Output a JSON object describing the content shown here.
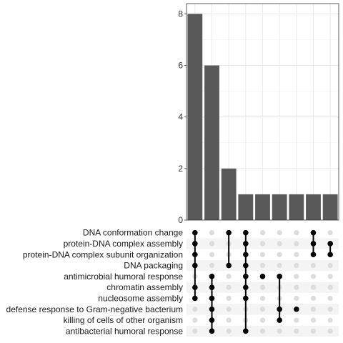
{
  "chart_data": {
    "type": "upset",
    "title": "",
    "ylim": [
      0,
      8.4
    ],
    "y_ticks": [
      0,
      2,
      4,
      6,
      8
    ],
    "y_tick_labels": [
      "0",
      "2",
      "4",
      "6",
      "8"
    ],
    "grid": true,
    "bar_color": "#595959",
    "dot_on_color": "#000000",
    "dot_off_color": "#dcdcdc",
    "sets": [
      "DNA conformation change",
      "protein-DNA complex assembly",
      "protein-DNA complex subunit organization",
      "DNA packaging",
      "antimicrobial humoral response",
      "chromatin assembly",
      "nucleosome assembly",
      "defense response to Gram-negative bacterium",
      "killing of cells of other organism",
      "antibacterial humoral response"
    ],
    "intersections": [
      {
        "value": 8,
        "members": [
          0,
          1,
          2,
          3,
          5,
          6
        ]
      },
      {
        "value": 6,
        "members": [
          4,
          5,
          6,
          7,
          8,
          9
        ]
      },
      {
        "value": 2,
        "members": [
          0,
          3
        ]
      },
      {
        "value": 1,
        "members": [
          0,
          1,
          2,
          3,
          4,
          5,
          6,
          9
        ]
      },
      {
        "value": 1,
        "members": [
          4
        ]
      },
      {
        "value": 1,
        "members": [
          4,
          7,
          8
        ]
      },
      {
        "value": 1,
        "members": [
          7
        ]
      },
      {
        "value": 1,
        "members": [
          0,
          1,
          2
        ]
      },
      {
        "value": 1,
        "members": [
          1,
          2
        ]
      }
    ]
  }
}
